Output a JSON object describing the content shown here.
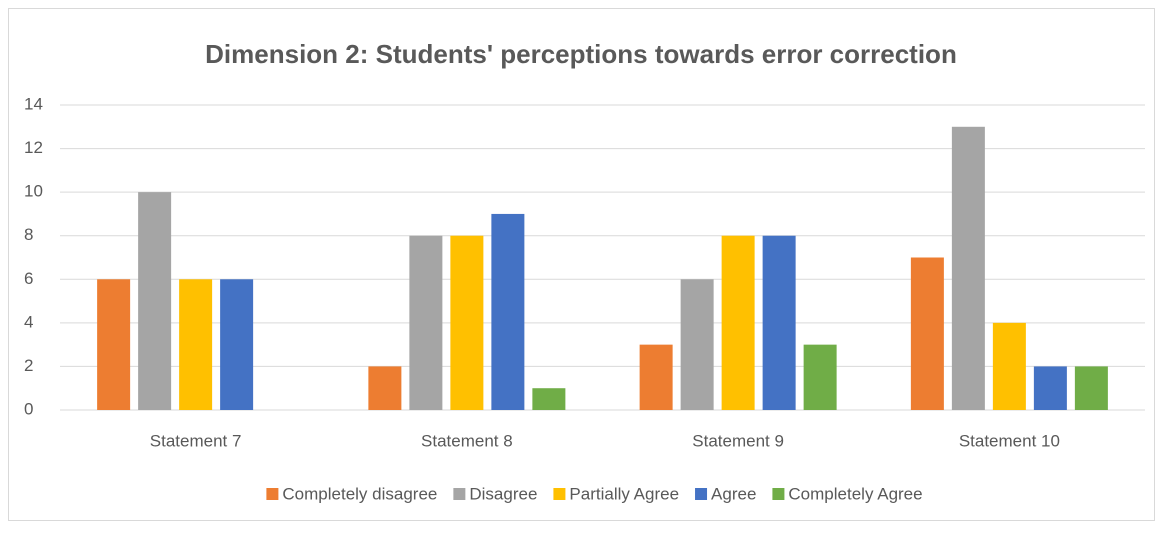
{
  "chart_data": {
    "type": "bar",
    "title": "Dimension 2: Students' perceptions towards error correction",
    "categories": [
      "Statement 7",
      "Statement 8",
      "Statement 9",
      "Statement 10"
    ],
    "series": [
      {
        "name": "Completely disagree",
        "color": "#ed7d31",
        "values": [
          6,
          2,
          3,
          7
        ]
      },
      {
        "name": "Disagree",
        "color": "#a5a5a5",
        "values": [
          10,
          8,
          6,
          13
        ]
      },
      {
        "name": "Partially Agree",
        "color": "#ffc000",
        "values": [
          6,
          8,
          8,
          4
        ]
      },
      {
        "name": "Agree",
        "color": "#4472c4",
        "values": [
          6,
          9,
          8,
          2
        ]
      },
      {
        "name": "Completely Agree",
        "color": "#70ad47",
        "values": [
          0,
          1,
          3,
          2
        ]
      }
    ],
    "ylim": [
      0,
      14
    ],
    "yticks": [
      0,
      2,
      4,
      6,
      8,
      10,
      12,
      14
    ],
    "grid": true,
    "legend": "bottom"
  }
}
